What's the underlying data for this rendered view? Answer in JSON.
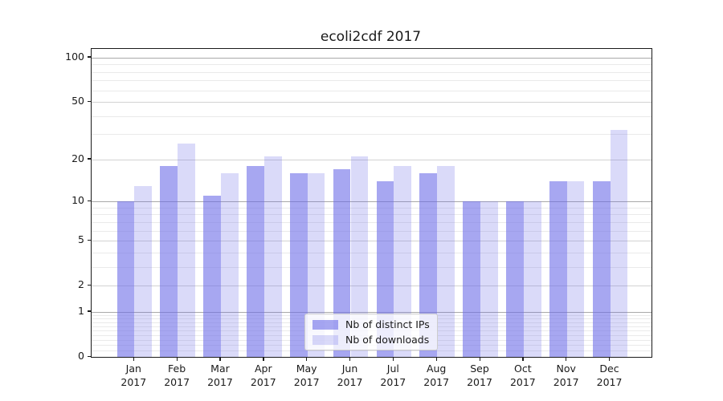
{
  "title": "ecoli2cdf 2017",
  "legend": {
    "items": [
      {
        "label": "Nb of distinct IPs",
        "color": "rgba(108,108,232,0.6)"
      },
      {
        "label": "Nb of downloads",
        "color": "rgba(108,108,232,0.25)"
      }
    ]
  },
  "chart_data": {
    "type": "bar",
    "title": "ecoli2cdf 2017",
    "scale": "log1p",
    "categories": [
      "Jan",
      "Feb",
      "Mar",
      "Apr",
      "May",
      "Jun",
      "Jul",
      "Aug",
      "Sep",
      "Oct",
      "Nov",
      "Dec"
    ],
    "year_label": "2017",
    "series": [
      {
        "name": "Nb of distinct IPs",
        "color": "rgba(108,108,232,0.6)",
        "values": [
          10,
          18,
          11,
          18,
          16,
          17,
          14,
          16,
          10,
          10,
          14,
          14
        ]
      },
      {
        "name": "Nb of downloads",
        "color": "rgba(108,108,232,0.25)",
        "values": [
          13,
          26,
          16,
          21,
          16,
          21,
          18,
          18,
          10,
          10,
          14,
          32
        ]
      }
    ],
    "yticks": [
      0,
      1,
      2,
      5,
      10,
      20,
      50,
      100
    ],
    "ylim": [
      0,
      100
    ],
    "xlabel": "",
    "ylabel": "",
    "grid": "on",
    "legend_position": "lower-center-inside"
  }
}
